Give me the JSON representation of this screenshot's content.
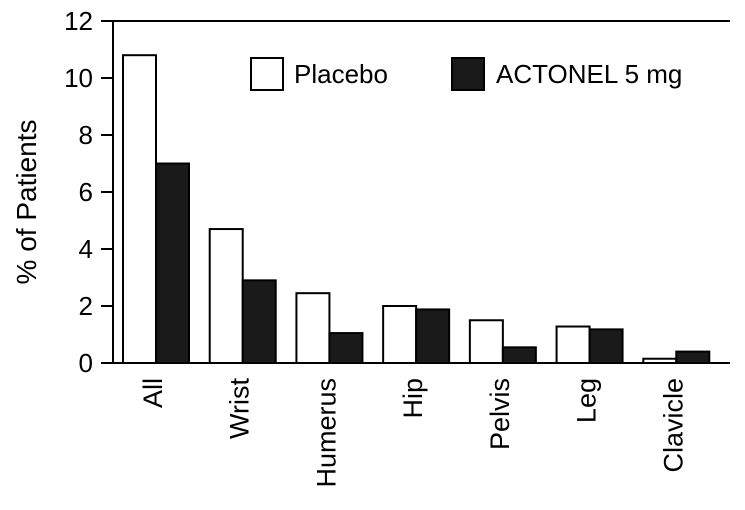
{
  "chart_data": {
    "type": "bar",
    "categories": [
      "All",
      "Wrist",
      "Humerus",
      "Hip",
      "Pelvis",
      "Leg",
      "Clavicle"
    ],
    "series": [
      {
        "name": "Placebo",
        "values": [
          10.8,
          4.7,
          2.45,
          2.0,
          1.5,
          1.28,
          0.15
        ],
        "color": "#ffffff"
      },
      {
        "name": "ACTONEL 5 mg",
        "values": [
          7.0,
          2.9,
          1.05,
          1.88,
          0.55,
          1.18,
          0.4
        ],
        "color": "#1a1a1a"
      }
    ],
    "title": "",
    "xlabel": "",
    "ylabel": "% of Patients",
    "ylim": [
      0,
      12
    ],
    "yticks": [
      0,
      2,
      4,
      6,
      8,
      10,
      12
    ],
    "legend_position": "top-right",
    "grid": false
  }
}
